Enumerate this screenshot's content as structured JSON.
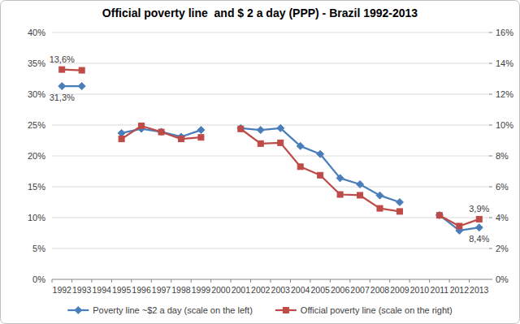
{
  "chart_data": {
    "type": "line",
    "title": "Official poverty line  and $ 2 a day (PPP) - Brazil 1992-2013",
    "categories": [
      "1992",
      "1993",
      "1994",
      "1995",
      "1996",
      "1997",
      "1998",
      "1999",
      "2000",
      "2001",
      "2002",
      "2003",
      "2004",
      "2005",
      "2006",
      "2007",
      "2008",
      "2009",
      "2010",
      "2011",
      "2012",
      "2013"
    ],
    "series": [
      {
        "name": "Poverty line ~$2 a day (scale on the left)",
        "color": "#4a7ebb",
        "marker": "diamond",
        "values": [
          31.3,
          31.3,
          null,
          23.7,
          24.4,
          23.9,
          23.1,
          24.2,
          null,
          24.5,
          24.2,
          24.5,
          21.6,
          20.3,
          16.4,
          15.4,
          13.6,
          12.5,
          null,
          10.4,
          7.9,
          8.4
        ],
        "value_labels": [
          "31,3%",
          null,
          null,
          null,
          null,
          null,
          null,
          null,
          null,
          null,
          null,
          null,
          null,
          null,
          null,
          null,
          null,
          null,
          null,
          null,
          null,
          "8,4%"
        ]
      },
      {
        "name": "Official poverty line (scale on the right)",
        "color": "#be4b48",
        "marker": "square",
        "axis": "y2",
        "values": [
          13.6,
          13.55,
          null,
          9.1,
          9.95,
          9.55,
          9.1,
          9.2,
          null,
          9.75,
          8.8,
          8.85,
          7.3,
          6.75,
          5.5,
          5.45,
          4.6,
          4.4,
          null,
          4.15,
          3.45,
          3.9
        ],
        "value_labels": [
          "13,6%",
          null,
          null,
          null,
          null,
          null,
          null,
          null,
          null,
          null,
          null,
          null,
          null,
          null,
          null,
          null,
          null,
          null,
          null,
          null,
          null,
          "3,9%"
        ]
      }
    ],
    "ylim": [
      0,
      40
    ],
    "yticks": [
      {
        "value": 0,
        "label": "0%"
      },
      {
        "value": 5,
        "label": "5%"
      },
      {
        "value": 10,
        "label": "10%"
      },
      {
        "value": 15,
        "label": "15%"
      },
      {
        "value": 20,
        "label": "20%"
      },
      {
        "value": 25,
        "label": "25%"
      },
      {
        "value": 30,
        "label": "30%"
      },
      {
        "value": 35,
        "label": "35%"
      },
      {
        "value": 40,
        "label": "40%"
      }
    ],
    "y2lim": [
      0,
      16
    ],
    "y2ticks": [
      {
        "value": 0,
        "label": "0%"
      },
      {
        "value": 2,
        "label": "2%"
      },
      {
        "value": 4,
        "label": "4%"
      },
      {
        "value": 6,
        "label": "6%"
      },
      {
        "value": 8,
        "label": "8%"
      },
      {
        "value": 10,
        "label": "10%"
      },
      {
        "value": 12,
        "label": "12%"
      },
      {
        "value": 14,
        "label": "14%"
      },
      {
        "value": 16,
        "label": "16%"
      }
    ],
    "grid": true,
    "legend": "bottom"
  }
}
